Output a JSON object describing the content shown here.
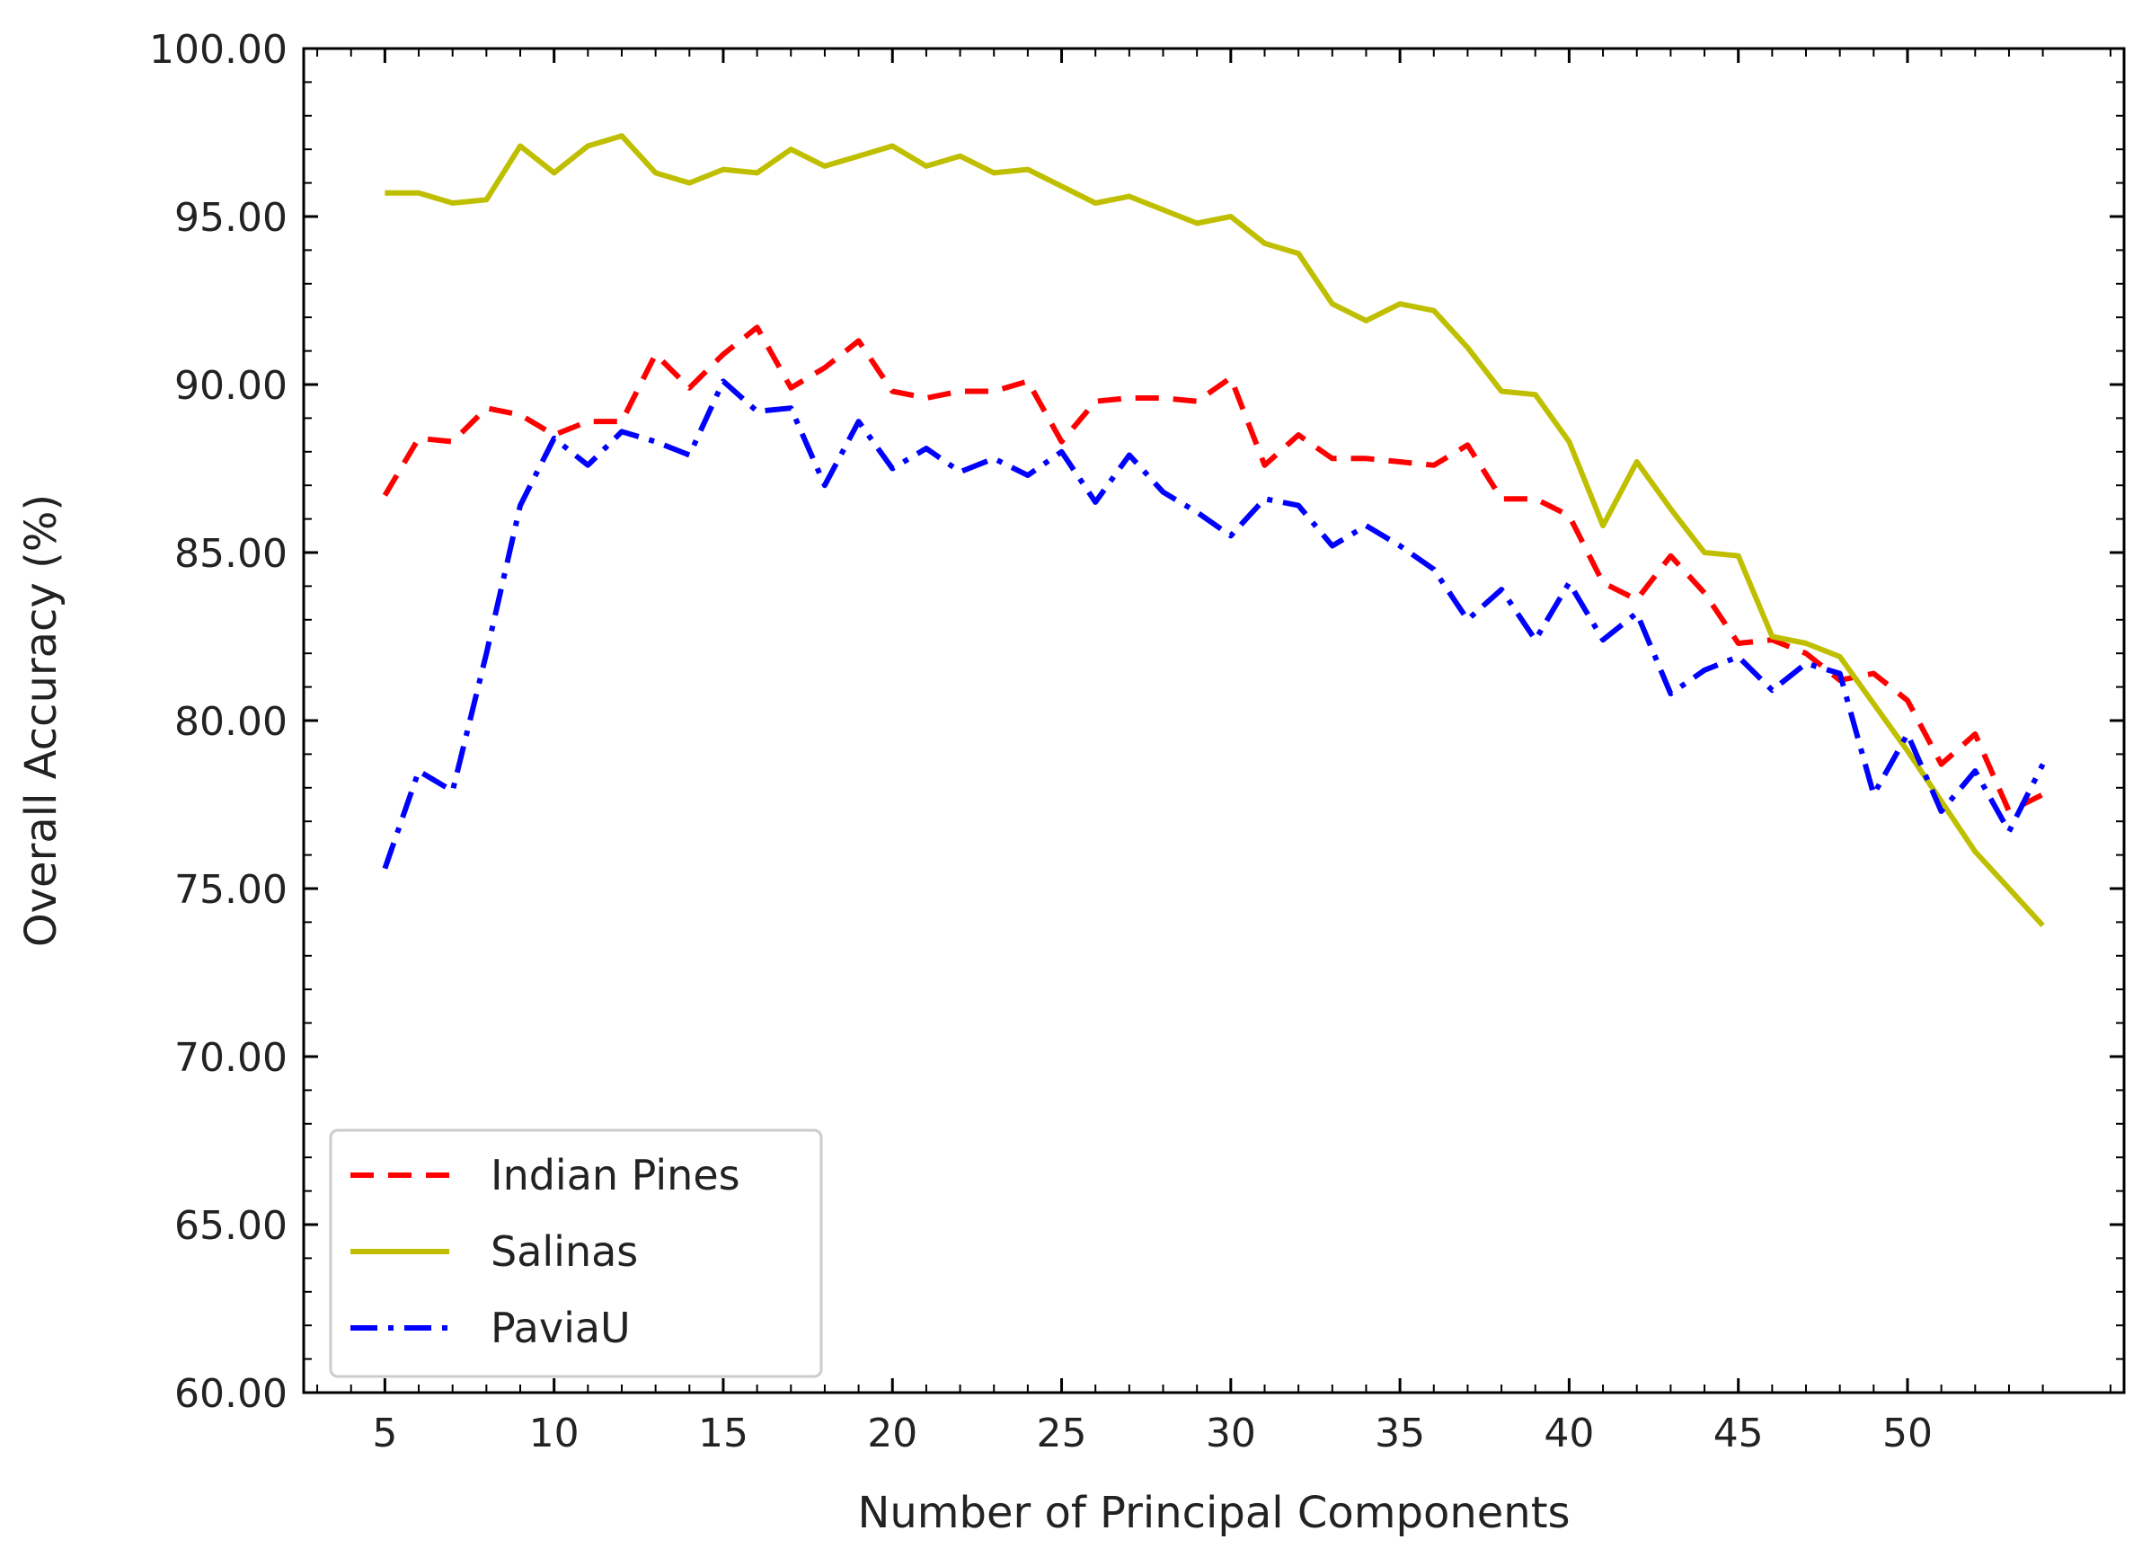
{
  "chart_data": {
    "type": "line",
    "title": "",
    "xlabel": "Number of Principal Components",
    "ylabel": "Overall Accuracy (%)",
    "xlim": [
      2.6,
      56.4
    ],
    "ylim": [
      60,
      100
    ],
    "xticks": [
      5,
      10,
      15,
      20,
      25,
      30,
      35,
      40,
      45,
      50
    ],
    "xtick_labels": [
      "5",
      "10",
      "15",
      "20",
      "25",
      "30",
      "35",
      "40",
      "45",
      "50"
    ],
    "yticks": [
      60,
      65,
      70,
      75,
      80,
      85,
      90,
      95,
      100
    ],
    "ytick_labels": [
      "60.00",
      "65.00",
      "70.00",
      "75.00",
      "80.00",
      "85.00",
      "90.00",
      "95.00",
      "100.00"
    ],
    "grid": false,
    "legend_position": "lower-left",
    "x": [
      5,
      6,
      7,
      8,
      9,
      10,
      11,
      12,
      13,
      14,
      15,
      16,
      17,
      18,
      19,
      20,
      21,
      22,
      23,
      24,
      25,
      26,
      27,
      28,
      29,
      30,
      31,
      32,
      33,
      34,
      35,
      36,
      37,
      38,
      39,
      40,
      41,
      42,
      43,
      44,
      45,
      46,
      47,
      48,
      49,
      50,
      51,
      52,
      53,
      54
    ],
    "series": [
      {
        "name": "Indian Pines",
        "color": "#ff0000",
        "style": "dashed",
        "values": [
          86.7,
          88.4,
          88.3,
          89.3,
          89.1,
          88.5,
          88.9,
          88.9,
          90.9,
          89.9,
          90.9,
          91.7,
          89.9,
          90.5,
          91.3,
          89.8,
          89.6,
          89.8,
          89.8,
          90.1,
          88.3,
          89.5,
          89.6,
          89.6,
          89.5,
          90.2,
          87.6,
          88.5,
          87.8,
          87.8,
          87.7,
          87.6,
          88.2,
          86.6,
          86.6,
          86.1,
          84.1,
          83.6,
          84.9,
          83.8,
          82.3,
          82.4,
          82.0,
          81.2,
          81.4,
          80.6,
          78.7,
          79.6,
          77.3,
          77.8
        ]
      },
      {
        "name": "Salinas",
        "color": "#bfbf00",
        "style": "solid",
        "values": [
          95.7,
          95.7,
          95.4,
          95.5,
          97.1,
          96.3,
          97.1,
          97.4,
          96.3,
          96.0,
          96.4,
          96.3,
          97.0,
          96.5,
          96.8,
          97.1,
          96.5,
          96.8,
          96.3,
          96.4,
          95.9,
          95.4,
          95.6,
          95.2,
          94.8,
          95.0,
          94.2,
          93.9,
          92.4,
          91.9,
          92.4,
          92.2,
          91.1,
          89.8,
          89.7,
          88.3,
          85.8,
          87.7,
          86.3,
          85.0,
          84.9,
          82.5,
          82.3,
          81.9,
          80.5,
          79.1,
          77.6,
          76.1,
          75.0,
          73.9
        ]
      },
      {
        "name": "PaviaU",
        "color": "#0000ff",
        "style": "dashdot",
        "values": [
          75.6,
          78.5,
          77.9,
          82.0,
          86.4,
          88.4,
          87.6,
          88.6,
          88.3,
          87.9,
          90.1,
          89.2,
          89.3,
          87.0,
          88.9,
          87.5,
          88.1,
          87.4,
          87.8,
          87.3,
          88.0,
          86.5,
          87.9,
          86.8,
          86.2,
          85.5,
          86.6,
          86.4,
          85.2,
          85.8,
          85.2,
          84.5,
          83.0,
          83.9,
          82.4,
          84.1,
          82.4,
          83.2,
          80.8,
          81.5,
          81.9,
          80.9,
          81.7,
          81.4,
          77.8,
          79.6,
          77.3,
          78.5,
          76.7,
          78.7
        ]
      }
    ]
  }
}
